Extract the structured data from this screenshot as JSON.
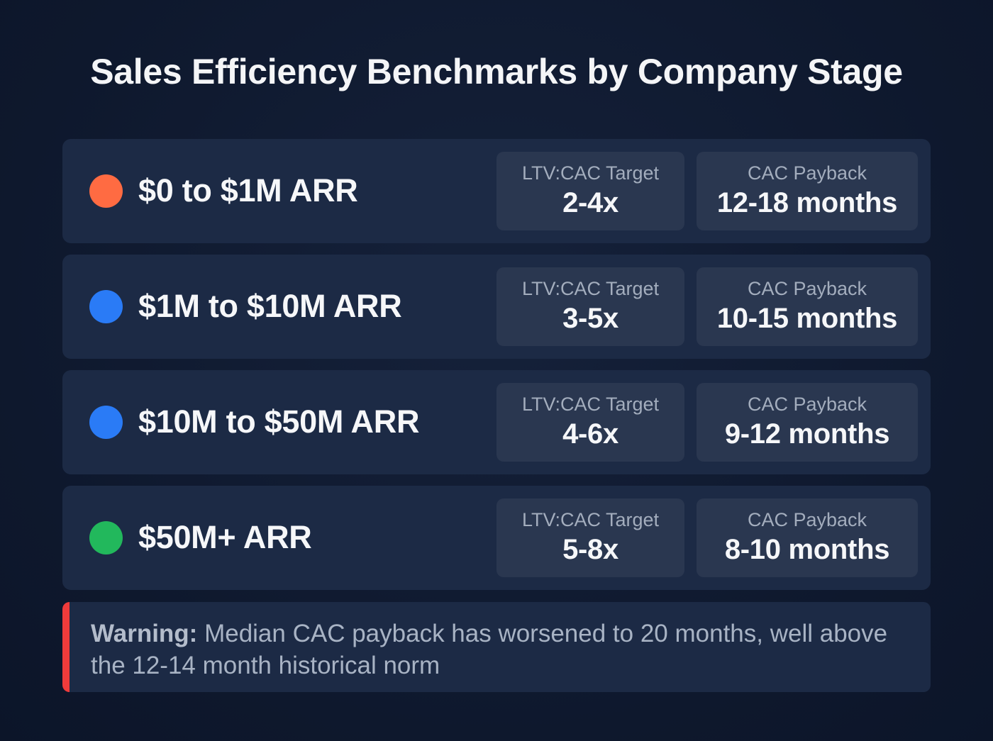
{
  "title": "Sales Efficiency Benchmarks by Company Stage",
  "colors": {
    "background": "#0f1a30",
    "card": "#1c2a45",
    "metric_card": "#2a3750",
    "warning_accent": "#ef3b3b"
  },
  "stages": [
    {
      "name": "$0 to $1M ARR",
      "dot_color": "#ff6b42",
      "ltv_cac_label": "LTV:CAC Target",
      "ltv_cac_value": "2-4x",
      "payback_label": "CAC Payback",
      "payback_value": "12-18 months"
    },
    {
      "name": "$1M to $10M ARR",
      "dot_color": "#2a7bf6",
      "ltv_cac_label": "LTV:CAC Target",
      "ltv_cac_value": "3-5x",
      "payback_label": "CAC Payback",
      "payback_value": "10-15 months"
    },
    {
      "name": "$10M to $50M ARR",
      "dot_color": "#2a7bf6",
      "ltv_cac_label": "LTV:CAC Target",
      "ltv_cac_value": "4-6x",
      "payback_label": "CAC Payback",
      "payback_value": "9-12 months"
    },
    {
      "name": "$50M+ ARR",
      "dot_color": "#22b85c",
      "ltv_cac_label": "LTV:CAC Target",
      "ltv_cac_value": "5-8x",
      "payback_label": "CAC Payback",
      "payback_value": "8-10 months"
    }
  ],
  "warning": {
    "label": "Warning:",
    "text": " Median CAC payback has worsened to 20 months, well above the 12-14 month historical norm"
  }
}
